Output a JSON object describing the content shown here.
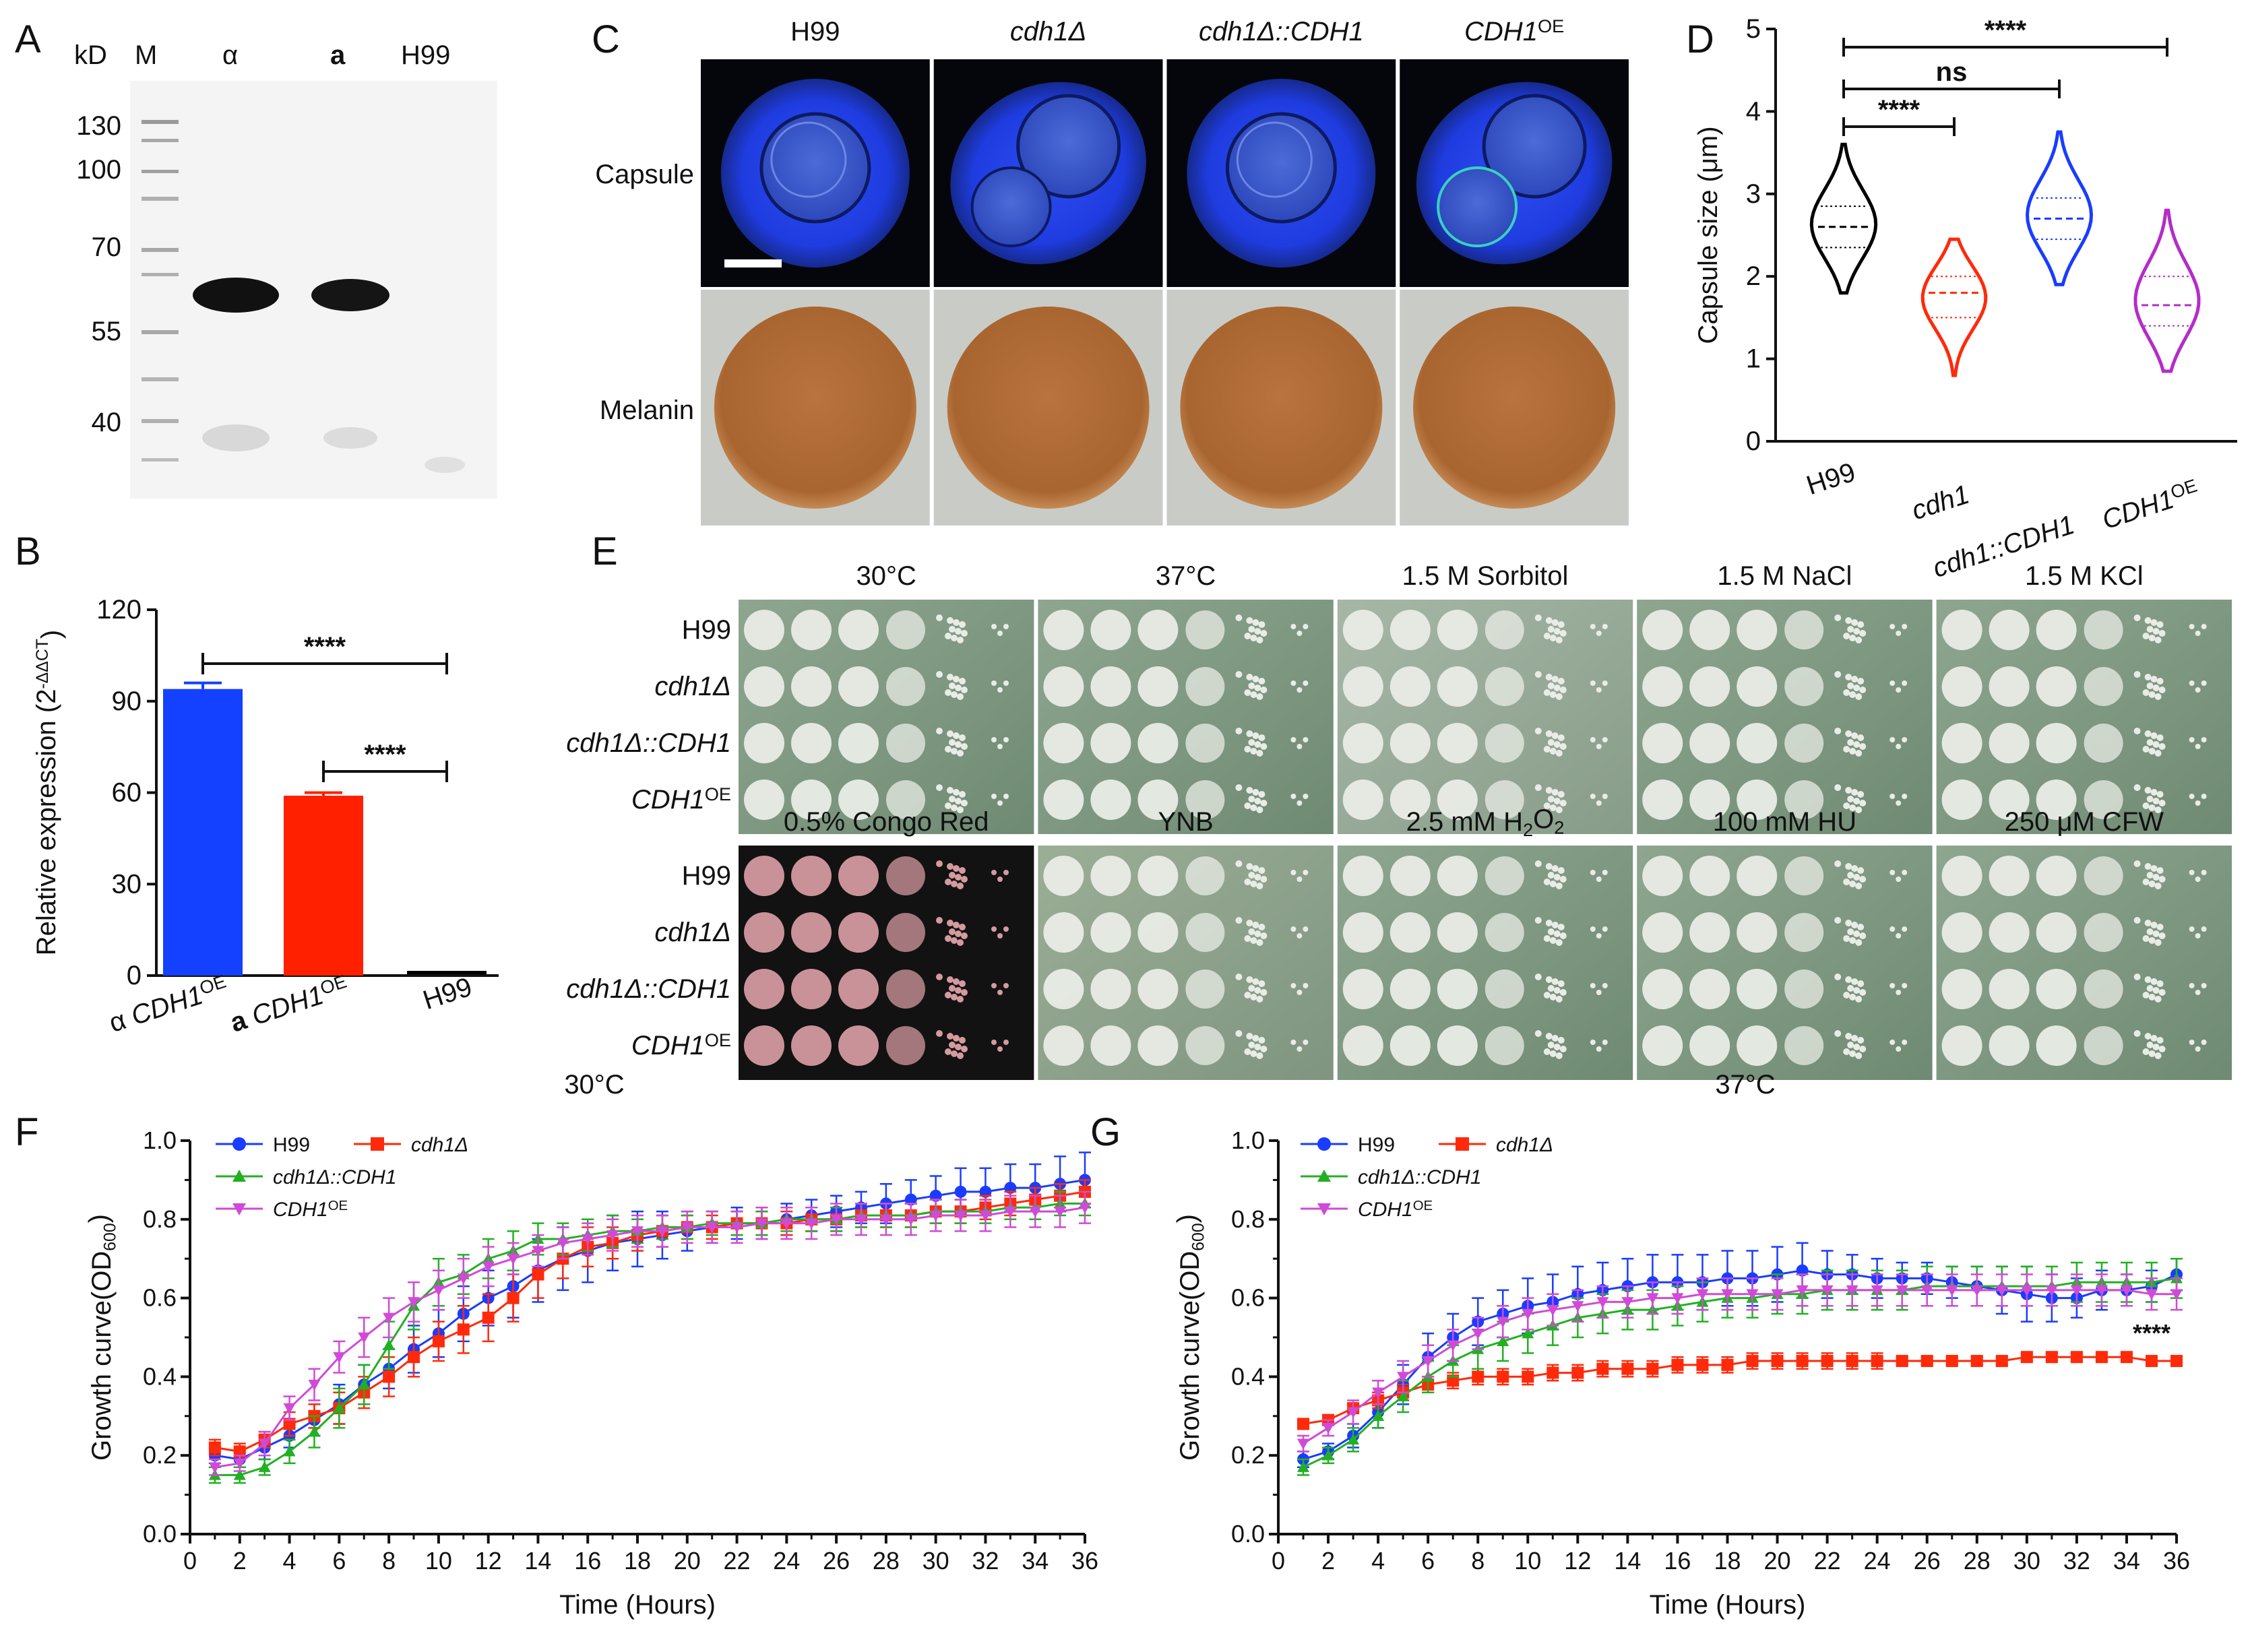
{
  "panels": {
    "A": {
      "label": "A",
      "marker_header": "kD",
      "lane_headers": [
        "M",
        "α",
        "a",
        "H99"
      ],
      "marker_values": [
        "130",
        "100",
        "70",
        "55",
        "40"
      ]
    },
    "B": {
      "label": "B",
      "ylabel": "Relative expression (2",
      "ylabel_sup": "-ΔΔCT",
      "ylabel_close": ")",
      "yticks": [
        "0",
        "30",
        "60",
        "90",
        "120"
      ],
      "categories": [
        {
          "prefix": "α ",
          "gene": "CDH1",
          "sup": "OE"
        },
        {
          "prefix": "a ",
          "gene": "CDH1",
          "sup": "OE"
        },
        {
          "prefix": "",
          "gene": "H99",
          "sup": ""
        }
      ],
      "values": [
        94,
        59,
        1
      ],
      "errors": [
        2,
        1,
        0
      ],
      "colors": [
        "#1440ff",
        "#ff2000",
        "#000000"
      ],
      "sig": [
        {
          "text": "****",
          "color": "#1440ff"
        },
        {
          "text": "****",
          "color": "#ff2000"
        }
      ]
    },
    "C": {
      "label": "C",
      "columns": [
        {
          "main": "H99",
          "sup": "",
          "italic": false
        },
        {
          "main": "cdh1Δ",
          "sup": "",
          "italic": true
        },
        {
          "main": "cdh1Δ::CDH1",
          "sup": "",
          "italic": true
        },
        {
          "main": "CDH1",
          "sup": "OE",
          "italic": true
        }
      ],
      "rows": [
        "Capsule",
        "Melanin"
      ]
    },
    "D": {
      "label": "D",
      "ylabel": "Capsule size (μm)",
      "yticks": [
        "0",
        "1",
        "2",
        "3",
        "4",
        "5"
      ],
      "categories": [
        "H99",
        "cdh1",
        "cdh1::CDH1",
        "CDH1"
      ],
      "last_sup": "OE",
      "medians": [
        2.6,
        1.8,
        2.7,
        1.65
      ],
      "quartiles": [
        [
          2.35,
          2.85
        ],
        [
          1.5,
          2.0
        ],
        [
          2.45,
          2.95
        ],
        [
          1.4,
          2.0
        ]
      ],
      "ranges": [
        [
          1.8,
          3.6
        ],
        [
          0.8,
          2.45
        ],
        [
          1.9,
          3.75
        ],
        [
          0.85,
          2.8
        ]
      ],
      "colors": [
        "#000000",
        "#ff2a0a",
        "#1a3cff",
        "#b42cc8"
      ],
      "sig": [
        {
          "text": "****",
          "color": "#ff2000"
        },
        {
          "text": "ns",
          "color": "#1440ff"
        },
        {
          "text": "****",
          "color": "#a020a0"
        }
      ]
    },
    "E": {
      "label": "E",
      "top_conditions": [
        "30°C",
        "37°C",
        "1.5 M Sorbitol",
        "1.5 M NaCl",
        "1.5 M KCl"
      ],
      "bottom_conditions": [
        "0.5% Congo Red",
        "YNB",
        "2.5 mM H",
        "100 mM HU",
        "250 μM CFW"
      ],
      "h2o2_parts": {
        "sub1": "2",
        "mid": "O",
        "sub2": "2"
      },
      "strains": [
        {
          "main": "H99",
          "sup": "",
          "italic": false
        },
        {
          "main": "cdh1Δ",
          "sup": "",
          "italic": true
        },
        {
          "main": "cdh1Δ::CDH1",
          "sup": "",
          "italic": true
        },
        {
          "main": "CDH1",
          "sup": "OE",
          "italic": true
        }
      ]
    }
  },
  "chart_data": [
    {
      "panel": "F",
      "type": "line",
      "title": "30°C",
      "xlabel": "Time (Hours)",
      "ylabel": "Growth curve(OD",
      "ylabel_sub": "600",
      "ylabel_close": ")",
      "xlim": [
        0,
        36
      ],
      "ylim": [
        0,
        1.0
      ],
      "xticks": [
        "0",
        "2",
        "4",
        "6",
        "8",
        "10",
        "12",
        "14",
        "16",
        "18",
        "20",
        "22",
        "24",
        "26",
        "28",
        "30",
        "32",
        "34",
        "36"
      ],
      "yticks": [
        "0.0",
        "0.2",
        "0.4",
        "0.6",
        "0.8",
        "1.0"
      ],
      "x": [
        1,
        2,
        3,
        4,
        5,
        6,
        7,
        8,
        9,
        10,
        11,
        12,
        13,
        14,
        15,
        16,
        17,
        18,
        19,
        20,
        21,
        22,
        23,
        24,
        25,
        26,
        27,
        28,
        29,
        30,
        31,
        32,
        33,
        34,
        35,
        36
      ],
      "series": [
        {
          "name": "H99",
          "sup": "",
          "color": "#1a3cff",
          "marker": "circle",
          "values": [
            0.2,
            0.19,
            0.22,
            0.25,
            0.29,
            0.33,
            0.38,
            0.42,
            0.47,
            0.51,
            0.56,
            0.6,
            0.63,
            0.67,
            0.7,
            0.72,
            0.74,
            0.75,
            0.76,
            0.77,
            0.78,
            0.79,
            0.79,
            0.8,
            0.81,
            0.82,
            0.83,
            0.84,
            0.85,
            0.86,
            0.87,
            0.87,
            0.88,
            0.88,
            0.89,
            0.9
          ],
          "errors": [
            0.02,
            0.02,
            0.03,
            0.03,
            0.04,
            0.05,
            0.05,
            0.05,
            0.06,
            0.06,
            0.07,
            0.07,
            0.08,
            0.08,
            0.08,
            0.08,
            0.07,
            0.07,
            0.06,
            0.05,
            0.04,
            0.04,
            0.04,
            0.04,
            0.04,
            0.04,
            0.04,
            0.05,
            0.05,
            0.05,
            0.06,
            0.06,
            0.06,
            0.06,
            0.07,
            0.07
          ]
        },
        {
          "name": "cdh1Δ",
          "sup": "",
          "color": "#ff2a0a",
          "marker": "square",
          "values": [
            0.22,
            0.21,
            0.24,
            0.28,
            0.3,
            0.32,
            0.36,
            0.4,
            0.45,
            0.49,
            0.52,
            0.55,
            0.6,
            0.66,
            0.7,
            0.73,
            0.74,
            0.76,
            0.77,
            0.78,
            0.78,
            0.79,
            0.79,
            0.79,
            0.8,
            0.8,
            0.81,
            0.81,
            0.81,
            0.82,
            0.82,
            0.83,
            0.84,
            0.85,
            0.86,
            0.87
          ],
          "errors": [
            0.02,
            0.02,
            0.02,
            0.03,
            0.03,
            0.04,
            0.04,
            0.05,
            0.05,
            0.05,
            0.06,
            0.06,
            0.06,
            0.06,
            0.05,
            0.05,
            0.04,
            0.04,
            0.04,
            0.03,
            0.03,
            0.03,
            0.03,
            0.03,
            0.03,
            0.03,
            0.03,
            0.03,
            0.03,
            0.03,
            0.03,
            0.03,
            0.03,
            0.03,
            0.03,
            0.03
          ]
        },
        {
          "name": "cdh1Δ::CDH1",
          "sup": "",
          "color": "#22b022",
          "marker": "triangle",
          "values": [
            0.15,
            0.15,
            0.17,
            0.21,
            0.26,
            0.32,
            0.38,
            0.48,
            0.58,
            0.64,
            0.66,
            0.7,
            0.72,
            0.75,
            0.75,
            0.76,
            0.77,
            0.77,
            0.78,
            0.78,
            0.79,
            0.79,
            0.79,
            0.8,
            0.8,
            0.8,
            0.81,
            0.81,
            0.81,
            0.82,
            0.82,
            0.82,
            0.83,
            0.83,
            0.84,
            0.84
          ],
          "errors": [
            0.02,
            0.02,
            0.02,
            0.03,
            0.04,
            0.05,
            0.05,
            0.06,
            0.06,
            0.06,
            0.05,
            0.05,
            0.05,
            0.04,
            0.04,
            0.04,
            0.04,
            0.03,
            0.03,
            0.03,
            0.03,
            0.03,
            0.03,
            0.03,
            0.03,
            0.03,
            0.03,
            0.03,
            0.03,
            0.03,
            0.03,
            0.03,
            0.03,
            0.03,
            0.03,
            0.03
          ]
        },
        {
          "name": "CDH1",
          "sup": "OE",
          "color": "#d04ad8",
          "marker": "invtriangle",
          "values": [
            0.17,
            0.18,
            0.23,
            0.32,
            0.38,
            0.45,
            0.5,
            0.55,
            0.59,
            0.62,
            0.65,
            0.68,
            0.7,
            0.72,
            0.74,
            0.75,
            0.76,
            0.77,
            0.77,
            0.78,
            0.78,
            0.78,
            0.79,
            0.79,
            0.79,
            0.8,
            0.8,
            0.8,
            0.8,
            0.81,
            0.81,
            0.81,
            0.82,
            0.82,
            0.82,
            0.83
          ],
          "errors": [
            0.02,
            0.02,
            0.03,
            0.03,
            0.04,
            0.04,
            0.05,
            0.05,
            0.05,
            0.05,
            0.05,
            0.05,
            0.04,
            0.04,
            0.04,
            0.04,
            0.04,
            0.04,
            0.04,
            0.04,
            0.04,
            0.04,
            0.04,
            0.04,
            0.04,
            0.04,
            0.04,
            0.04,
            0.04,
            0.04,
            0.04,
            0.04,
            0.04,
            0.04,
            0.04,
            0.04
          ]
        }
      ]
    },
    {
      "panel": "G",
      "type": "line",
      "title": "37°C",
      "xlabel": "Time (Hours)",
      "ylabel": "Growth curve(OD",
      "ylabel_sub": "600",
      "ylabel_close": ")",
      "xlim": [
        0,
        36
      ],
      "ylim": [
        0,
        1.0
      ],
      "annotation": {
        "text": "****",
        "color": "#ff2000"
      },
      "xticks": [
        "0",
        "2",
        "4",
        "6",
        "8",
        "10",
        "12",
        "14",
        "16",
        "18",
        "20",
        "22",
        "24",
        "26",
        "28",
        "30",
        "32",
        "34",
        "36"
      ],
      "yticks": [
        "0.0",
        "0.2",
        "0.4",
        "0.6",
        "0.8",
        "1.0"
      ],
      "x": [
        1,
        2,
        3,
        4,
        5,
        6,
        7,
        8,
        9,
        10,
        11,
        12,
        13,
        14,
        15,
        16,
        17,
        18,
        19,
        20,
        21,
        22,
        23,
        24,
        25,
        26,
        27,
        28,
        29,
        30,
        31,
        32,
        33,
        34,
        35,
        36
      ],
      "series": [
        {
          "name": "H99",
          "sup": "",
          "color": "#1a3cff",
          "marker": "circle",
          "values": [
            0.19,
            0.21,
            0.25,
            0.31,
            0.38,
            0.45,
            0.5,
            0.54,
            0.56,
            0.58,
            0.59,
            0.61,
            0.62,
            0.63,
            0.64,
            0.64,
            0.64,
            0.65,
            0.65,
            0.66,
            0.67,
            0.66,
            0.66,
            0.65,
            0.65,
            0.65,
            0.64,
            0.63,
            0.62,
            0.61,
            0.6,
            0.6,
            0.62,
            0.62,
            0.63,
            0.66
          ],
          "errors": [
            0.02,
            0.02,
            0.03,
            0.04,
            0.05,
            0.06,
            0.06,
            0.06,
            0.06,
            0.07,
            0.07,
            0.07,
            0.07,
            0.07,
            0.07,
            0.07,
            0.07,
            0.07,
            0.07,
            0.07,
            0.07,
            0.06,
            0.05,
            0.05,
            0.04,
            0.04,
            0.04,
            0.05,
            0.06,
            0.07,
            0.06,
            0.05,
            0.05,
            0.04,
            0.04,
            0.04
          ]
        },
        {
          "name": "cdh1Δ",
          "sup": "",
          "color": "#ff2a0a",
          "marker": "square",
          "values": [
            0.28,
            0.29,
            0.32,
            0.34,
            0.36,
            0.38,
            0.39,
            0.4,
            0.4,
            0.4,
            0.41,
            0.41,
            0.42,
            0.42,
            0.42,
            0.43,
            0.43,
            0.43,
            0.44,
            0.44,
            0.44,
            0.44,
            0.44,
            0.44,
            0.44,
            0.44,
            0.44,
            0.44,
            0.44,
            0.45,
            0.45,
            0.45,
            0.45,
            0.45,
            0.44,
            0.44
          ],
          "errors": [
            0.01,
            0.01,
            0.01,
            0.02,
            0.02,
            0.02,
            0.02,
            0.02,
            0.02,
            0.02,
            0.02,
            0.02,
            0.02,
            0.02,
            0.02,
            0.02,
            0.02,
            0.02,
            0.02,
            0.02,
            0.02,
            0.02,
            0.02,
            0.02,
            0.01,
            0.01,
            0.01,
            0.01,
            0.01,
            0.01,
            0.01,
            0.01,
            0.01,
            0.01,
            0.01,
            0.01
          ]
        },
        {
          "name": "cdh1Δ::CDH1",
          "sup": "",
          "color": "#22b022",
          "marker": "triangle",
          "values": [
            0.17,
            0.2,
            0.24,
            0.3,
            0.35,
            0.4,
            0.44,
            0.47,
            0.49,
            0.51,
            0.53,
            0.55,
            0.56,
            0.57,
            0.57,
            0.58,
            0.59,
            0.6,
            0.6,
            0.61,
            0.61,
            0.62,
            0.62,
            0.62,
            0.62,
            0.63,
            0.63,
            0.63,
            0.63,
            0.63,
            0.63,
            0.64,
            0.64,
            0.64,
            0.64,
            0.65
          ],
          "errors": [
            0.02,
            0.02,
            0.03,
            0.03,
            0.04,
            0.04,
            0.04,
            0.05,
            0.05,
            0.05,
            0.05,
            0.05,
            0.05,
            0.05,
            0.05,
            0.05,
            0.05,
            0.05,
            0.05,
            0.05,
            0.05,
            0.05,
            0.05,
            0.05,
            0.05,
            0.05,
            0.05,
            0.05,
            0.05,
            0.05,
            0.05,
            0.05,
            0.05,
            0.05,
            0.05,
            0.05
          ]
        },
        {
          "name": "CDH1",
          "sup": "OE",
          "color": "#d04ad8",
          "marker": "invtriangle",
          "values": [
            0.23,
            0.27,
            0.31,
            0.36,
            0.4,
            0.44,
            0.48,
            0.51,
            0.54,
            0.56,
            0.57,
            0.58,
            0.59,
            0.59,
            0.6,
            0.6,
            0.61,
            0.61,
            0.61,
            0.61,
            0.62,
            0.62,
            0.62,
            0.62,
            0.62,
            0.62,
            0.62,
            0.62,
            0.62,
            0.62,
            0.62,
            0.62,
            0.62,
            0.62,
            0.61,
            0.61
          ],
          "errors": [
            0.02,
            0.02,
            0.03,
            0.03,
            0.04,
            0.04,
            0.04,
            0.04,
            0.04,
            0.04,
            0.04,
            0.04,
            0.04,
            0.04,
            0.04,
            0.04,
            0.04,
            0.04,
            0.04,
            0.04,
            0.04,
            0.04,
            0.04,
            0.04,
            0.04,
            0.04,
            0.04,
            0.04,
            0.04,
            0.04,
            0.04,
            0.04,
            0.04,
            0.04,
            0.04,
            0.04
          ]
        }
      ]
    }
  ]
}
